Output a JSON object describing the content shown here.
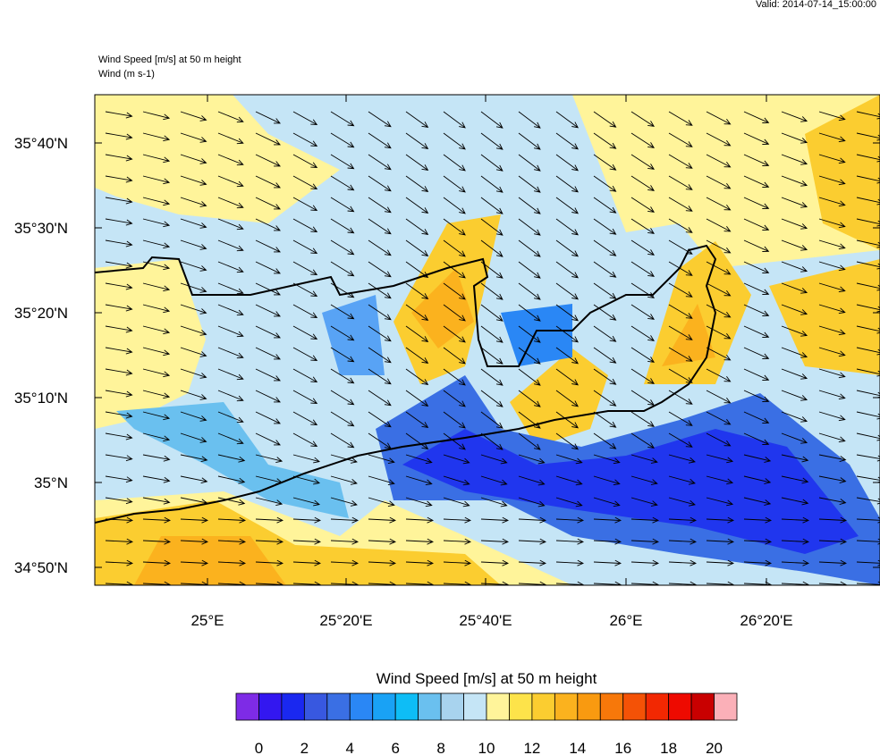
{
  "header": {
    "valid": "Valid: 2014-07-14_15:00:00",
    "title_lines": [
      "Wind Speed [m/s] at 50 m height",
      "Wind   (m s-1)"
    ]
  },
  "map": {
    "lat_labels": [
      "35°40'N",
      "35°30'N",
      "35°20'N",
      "35°10'N",
      "35°N",
      "34°50'N"
    ],
    "lon_labels": [
      "25°E",
      "25°20'E",
      "25°40'E",
      "26°E",
      "26°20'E"
    ]
  },
  "colorbar": {
    "title": "Wind Speed [m/s] at 50 m height",
    "labels": [
      "0",
      "2",
      "4",
      "6",
      "8",
      "10",
      "12",
      "14",
      "16",
      "18",
      "20"
    ],
    "colors": [
      "#7e2be6",
      "#3317f0",
      "#1a28f0",
      "#3858e0",
      "#3a6fe4",
      "#2a87f5",
      "#19a2f5",
      "#0ebdf6",
      "#6ac0ef",
      "#a8d3ee",
      "#c5e5f6",
      "#fff49a",
      "#fde34a",
      "#fbcd30",
      "#fbb21e",
      "#f99a10",
      "#f7780a",
      "#f45206",
      "#f22802",
      "#ee0a00",
      "#c90000",
      "#fbb0b8"
    ]
  }
}
